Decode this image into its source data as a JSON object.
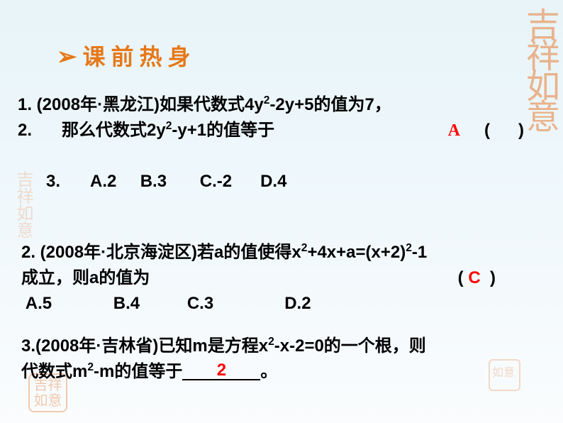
{
  "colors": {
    "title": "#e67817",
    "arrow": "#e67817",
    "text": "#000000",
    "answer": "#ff0000",
    "seal": "#e89860"
  },
  "section_title": {
    "arrow": "➢",
    "text": "课前热身"
  },
  "q1": {
    "line1_a": "1.  (2008年·黑龙江)如果代数式4y",
    "line1_b": "-2y+5的值为7，",
    "line2_a": "2.",
    "line2_b": "那么代数式2y",
    "line2_c": "-y+1的值等于",
    "paren_open": "(",
    "paren_close": ")",
    "answer": "A",
    "line3_a": "3.",
    "opts": "A.2     B.3       C.-2      D.4"
  },
  "q2": {
    "line1_a": "2. (2008年·北京海淀区)若a的值使得x",
    "line1_b": "+4x+a=(x+2)",
    "line1_c": "-1",
    "line2_a": "成立，则a的值为",
    "paren_open": "(",
    "paren_close": ")",
    "answer": "C",
    "opts": " A.5             B.4          C.3               D.2"
  },
  "q3": {
    "line1_a": "3.(2008年·吉林省)已知m是方程x",
    "line1_b": "-x-2=0的一个根，则",
    "line2_a": "代数式m",
    "line2_b": "-m的值等于",
    "answer": "2",
    "line2_c": "。"
  },
  "seals": {
    "tr": "吉祥如意",
    "left": "吉祥如意",
    "bl": "吉祥如意",
    "br": "如意"
  }
}
